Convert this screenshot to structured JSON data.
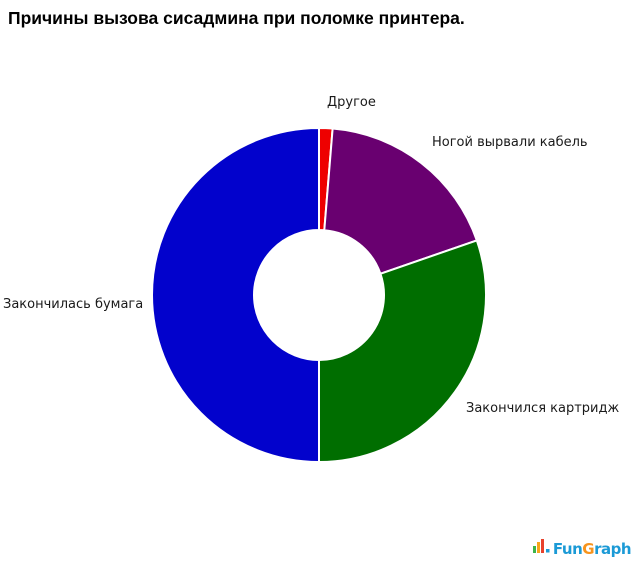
{
  "title": "Причины вызова сисадмина при поломке принтера.",
  "chart_data": {
    "type": "pie",
    "subtype": "donut",
    "title": "Причины вызова сисадмина при поломке принтера.",
    "start_angle_deg": 0,
    "direction": "clockwise",
    "inner_radius_ratio": 0.39,
    "legend": "none",
    "slice_gap_color": "#ffffff",
    "slices": [
      {
        "label": "Другое",
        "value": 1.3,
        "color": "#ee0000"
      },
      {
        "label": "Ногой вырвали кабель",
        "value": 18.4,
        "color": "#690070"
      },
      {
        "label": "Закончился картридж",
        "value": 30.3,
        "color": "#006e00"
      },
      {
        "label": "Закончилась бумага",
        "value": 50.0,
        "color": "#0202cc"
      }
    ]
  },
  "watermark": {
    "name": "FunGraph",
    "part_fun": "Fun",
    "part_g": "G",
    "part_raph": "raph",
    "icon": "bar-chart-icon",
    "colors": {
      "text_blue": "#1b9ad6",
      "text_orange": "#f7941d"
    }
  }
}
